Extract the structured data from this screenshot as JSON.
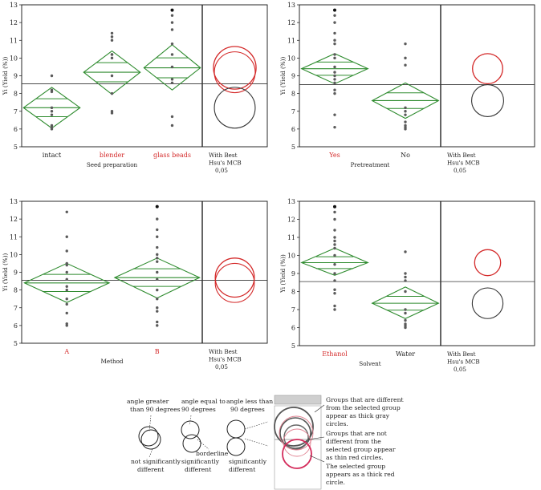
{
  "chart_data": [
    {
      "type": "scatter",
      "title": "",
      "xlabel": "Seed preparation",
      "ylabel": "Yi (Yield (%))",
      "ylim": [
        5,
        13
      ],
      "yticks": [
        "5",
        "6",
        "7",
        "8",
        "9",
        "10",
        "11",
        "12",
        "13"
      ],
      "grand_mean": 8.55,
      "categories": [
        {
          "name": "intact",
          "highlight": false,
          "mean": 7.2,
          "ci": [
            6.05,
            8.35
          ],
          "points": [
            6.0,
            6.1,
            6.2,
            6.8,
            7.0,
            7.2,
            8.1,
            8.2,
            9.0
          ]
        },
        {
          "name": "blender",
          "highlight": true,
          "mean": 9.2,
          "ci": [
            7.95,
            10.4
          ],
          "points": [
            6.9,
            7.0,
            8.0,
            9.0,
            10.0,
            10.2,
            10.2,
            11.0,
            11.2,
            11.4
          ]
        },
        {
          "name": "glass beads",
          "highlight": true,
          "mean": 9.45,
          "ci": [
            8.2,
            10.75
          ],
          "points": [
            6.2,
            6.7,
            8.6,
            8.8,
            9.5,
            10.2,
            10.8,
            11.6,
            12.0,
            12.4,
            12.7
          ]
        }
      ],
      "compare_label": [
        "With Best",
        "Hsu's MCB",
        "0,05"
      ],
      "circles": [
        {
          "center": 9.45,
          "radius": 1.2,
          "style": "selected"
        },
        {
          "center": 9.2,
          "radius": 1.15,
          "style": "not-different"
        },
        {
          "center": 7.2,
          "radius": 1.15,
          "style": "different"
        }
      ]
    },
    {
      "type": "scatter",
      "title": "",
      "xlabel": "Pretreatment",
      "ylabel": "Yi (Yield (%))",
      "ylim": [
        5,
        13
      ],
      "yticks": [
        "5",
        "6",
        "7",
        "8",
        "9",
        "10",
        "11",
        "12",
        "13"
      ],
      "grand_mean": 8.5,
      "categories": [
        {
          "name": "Yes",
          "highlight": true,
          "mean": 9.4,
          "ci": [
            8.55,
            10.25
          ],
          "points": [
            6.1,
            6.8,
            8.0,
            8.2,
            8.6,
            8.8,
            9.0,
            9.2,
            9.5,
            10.0,
            10.2,
            10.8,
            11.0,
            11.4,
            12.0,
            12.4,
            12.7
          ]
        },
        {
          "name": "No",
          "highlight": false,
          "mean": 7.6,
          "ci": [
            6.6,
            8.6
          ],
          "points": [
            6.0,
            6.1,
            6.2,
            6.4,
            6.8,
            7.0,
            7.2,
            9.6,
            10.0,
            10.8
          ]
        }
      ],
      "compare_label": [
        "With Best",
        "Hsu's MCB",
        "0,05"
      ],
      "circles": [
        {
          "center": 9.4,
          "radius": 0.85,
          "style": "selected"
        },
        {
          "center": 7.6,
          "radius": 0.9,
          "style": "different"
        }
      ]
    },
    {
      "type": "scatter",
      "title": "",
      "xlabel": "Method",
      "ylabel": "Yi (Yield (%))",
      "ylim": [
        5,
        13
      ],
      "yticks": [
        "5",
        "6",
        "7",
        "8",
        "9",
        "10",
        "11",
        "12",
        "13"
      ],
      "grand_mean": 8.55,
      "categories": [
        {
          "name": "A",
          "highlight": true,
          "mean": 8.4,
          "ci": [
            7.3,
            9.5
          ],
          "points": [
            6.0,
            6.1,
            6.7,
            7.2,
            7.5,
            8.0,
            8.2,
            8.6,
            9.0,
            9.4,
            9.5,
            10.2,
            11.0,
            12.4
          ]
        },
        {
          "name": "B",
          "highlight": true,
          "mean": 8.7,
          "ci": [
            7.55,
            9.8
          ],
          "points": [
            6.0,
            6.2,
            6.8,
            7.0,
            7.5,
            8.0,
            8.6,
            9.0,
            9.6,
            9.8,
            10.0,
            10.4,
            11.0,
            11.4,
            12.0,
            12.7
          ]
        }
      ],
      "compare_label": [
        "With Best",
        "Hsu's MCB",
        "0,05"
      ],
      "circles": [
        {
          "center": 8.7,
          "radius": 1.1,
          "style": "selected"
        },
        {
          "center": 8.4,
          "radius": 1.1,
          "style": "not-different"
        }
      ]
    },
    {
      "type": "scatter",
      "title": "",
      "xlabel": "Solvent",
      "ylabel": "Yi (Yield (%))",
      "ylim": [
        5,
        13
      ],
      "yticks": [
        "5",
        "6",
        "7",
        "8",
        "9",
        "10",
        "11",
        "12",
        "13"
      ],
      "grand_mean": 8.55,
      "categories": [
        {
          "name": "Ethanol",
          "highlight": true,
          "mean": 9.6,
          "ci": [
            8.9,
            10.4
          ],
          "points": [
            7.0,
            7.2,
            7.9,
            8.1,
            8.6,
            9.0,
            9.5,
            10.0,
            10.4,
            10.6,
            10.8,
            11.0,
            11.4,
            12.0,
            12.4,
            12.7
          ]
        },
        {
          "name": "Water",
          "highlight": false,
          "mean": 7.35,
          "ci": [
            6.5,
            8.25
          ],
          "points": [
            6.0,
            6.1,
            6.2,
            6.4,
            6.8,
            7.0,
            8.0,
            8.6,
            8.8,
            9.0,
            10.2
          ]
        }
      ],
      "compare_label": [
        "With Best",
        "Hsu's MCB",
        "0,05"
      ],
      "circles": [
        {
          "center": 9.6,
          "radius": 0.72,
          "style": "selected"
        },
        {
          "center": 7.35,
          "radius": 0.85,
          "style": "different"
        }
      ]
    }
  ],
  "legend": {
    "greater": [
      "angle greater",
      "than 90 degrees"
    ],
    "equal": [
      "angle equal to",
      "90 degrees"
    ],
    "less": [
      "angle less than",
      "90 degrees"
    ],
    "not_sig": [
      "not significantly",
      "different"
    ],
    "borderline": [
      "borderline",
      "significantly",
      "different"
    ],
    "sig": [
      "significantly",
      "different"
    ],
    "gray_note": [
      "Groups that are different",
      "from the selected group",
      "appear as thick gray",
      "circles."
    ],
    "red_note": [
      "Groups that are not",
      "different from the",
      "selected group appear",
      "as thin red circles."
    ],
    "sel_note": [
      "The selected group",
      "appears as a thick red",
      "circle."
    ]
  },
  "colors": {
    "green": "#2e8b2e",
    "red": "#d42a2a",
    "dark": "#333333",
    "point": "#5a5a5a"
  }
}
